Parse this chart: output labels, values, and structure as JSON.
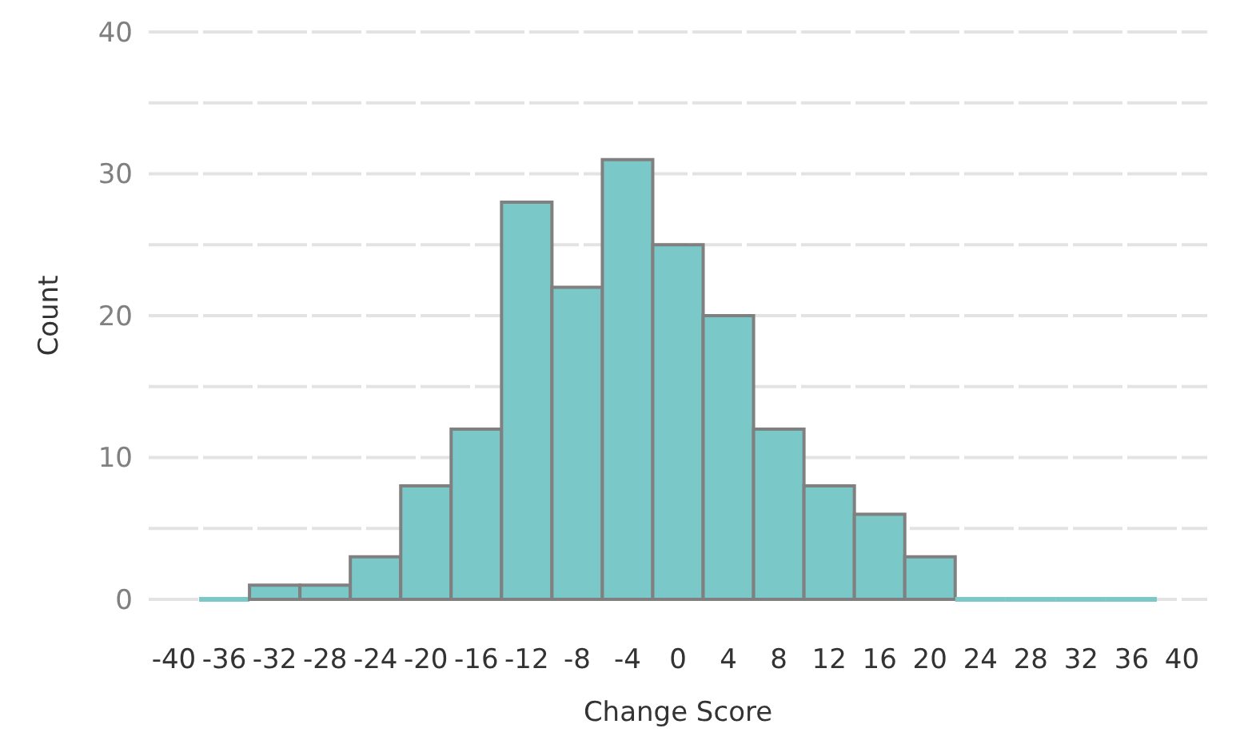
{
  "chart_data": {
    "type": "histogram",
    "xlabel": "Change Score",
    "ylabel": "Count",
    "bins": [
      -38,
      -34,
      -30,
      -26,
      -22,
      -18,
      -14,
      -10,
      -6,
      -2,
      2,
      6,
      10,
      14,
      18,
      22,
      26,
      30,
      34,
      38
    ],
    "values": [
      0,
      1,
      1,
      3,
      8,
      12,
      28,
      22,
      31,
      25,
      20,
      12,
      8,
      6,
      3,
      0,
      0,
      0,
      0
    ],
    "color": "#7ac8c8",
    "xlim": [
      -42,
      42
    ],
    "xticks": [
      -40,
      -36,
      -32,
      -28,
      -24,
      -20,
      -16,
      -12,
      -8,
      -4,
      0,
      4,
      8,
      12,
      16,
      20,
      24,
      28,
      32,
      36,
      40
    ],
    "ylim": [
      0,
      40
    ],
    "yticks": [
      0,
      {
        "value": 5,
        "label": null
      },
      10,
      {
        "value": 15,
        "label": null
      },
      20,
      {
        "value": 25,
        "label": null
      },
      30,
      {
        "value": 35,
        "label": null
      },
      40
    ],
    "grid": true
  }
}
